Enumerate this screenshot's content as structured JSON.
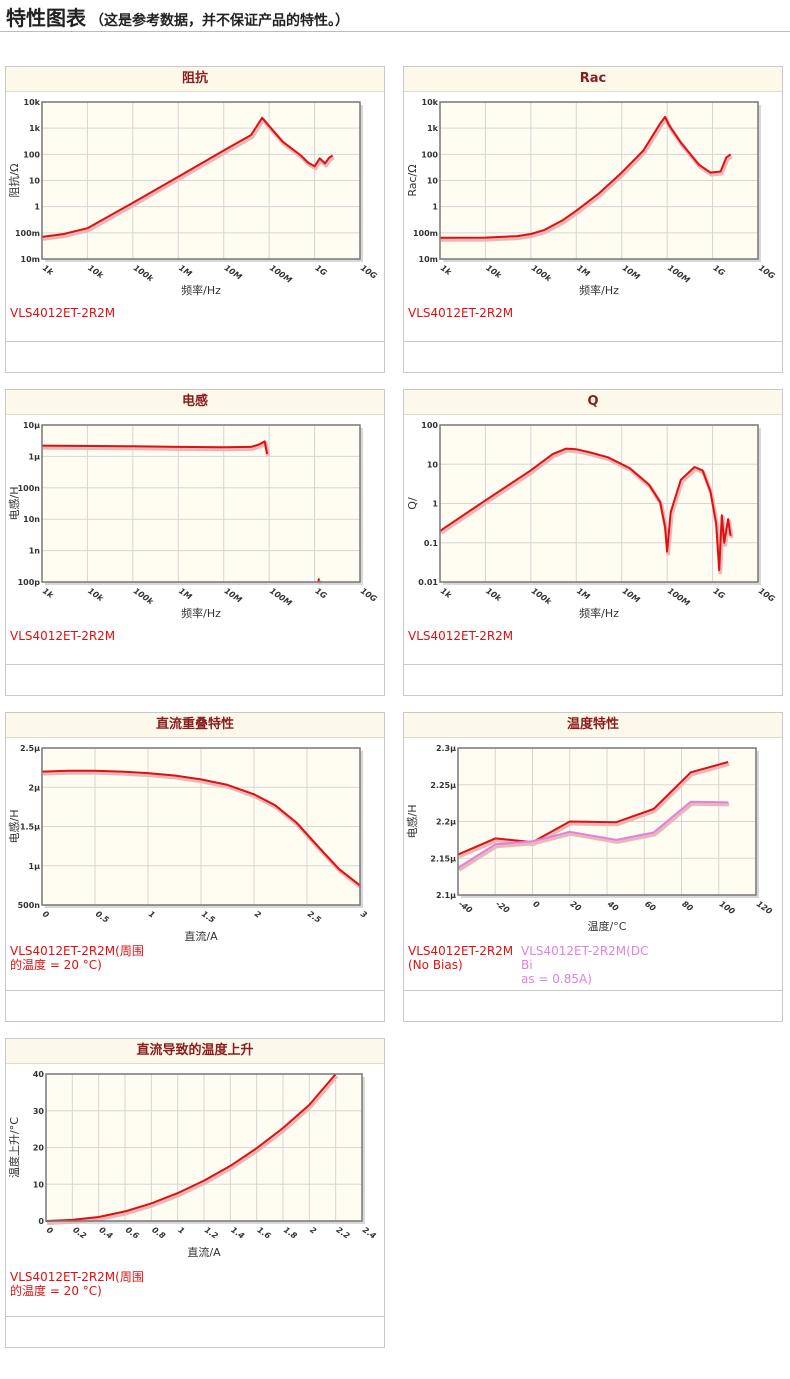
{
  "page": {
    "title": "特性图表",
    "subtitle": "（这是参考数据，并不保证产品的特性。）"
  },
  "charts": [
    {
      "id": "impedance",
      "title": "阻抗",
      "type": "line",
      "xscale": "log",
      "yscale": "log",
      "xlim": [
        1000,
        10000000000
      ],
      "ylim": [
        0.01,
        10000
      ],
      "xticks": [
        [
          1000,
          "1k"
        ],
        [
          10000,
          "10k"
        ],
        [
          100000,
          "100k"
        ],
        [
          1000000,
          "1M"
        ],
        [
          10000000,
          "10M"
        ],
        [
          100000000,
          "100M"
        ],
        [
          1000000000,
          "1G"
        ],
        [
          10000000000,
          "10G"
        ]
      ],
      "yticks": [
        [
          0.01,
          "10m"
        ],
        [
          0.1,
          "100m"
        ],
        [
          1,
          "1"
        ],
        [
          10,
          "10"
        ],
        [
          100,
          "100"
        ],
        [
          1000,
          "1k"
        ],
        [
          10000,
          "10k"
        ]
      ],
      "xlabel": "频率/Hz",
      "ylabel": "阻抗/Ω",
      "series": [
        {
          "name": "VLS4012ET-2R2M",
          "color": "#e01010",
          "x": [
            1000,
            3000,
            10000,
            100000,
            1000000,
            10000000,
            40000000,
            70000000,
            100000000,
            200000000,
            500000000,
            700000000,
            1000000000,
            1300000000,
            1700000000,
            2100000000,
            2500000000
          ],
          "y": [
            0.07,
            0.09,
            0.15,
            1.4,
            14,
            140,
            550,
            2500,
            1200,
            300,
            90,
            50,
            35,
            70,
            45,
            75,
            90
          ]
        }
      ]
    },
    {
      "id": "rac",
      "title": "Rac",
      "type": "line",
      "xscale": "log",
      "yscale": "log",
      "xlim": [
        1000,
        10000000000
      ],
      "ylim": [
        0.01,
        10000
      ],
      "xticks": [
        [
          1000,
          "1k"
        ],
        [
          10000,
          "10k"
        ],
        [
          100000,
          "100k"
        ],
        [
          1000000,
          "1M"
        ],
        [
          10000000,
          "10M"
        ],
        [
          100000000,
          "100M"
        ],
        [
          1000000000,
          "1G"
        ],
        [
          10000000000,
          "10G"
        ]
      ],
      "yticks": [
        [
          0.01,
          "10m"
        ],
        [
          0.1,
          "100m"
        ],
        [
          1,
          "1"
        ],
        [
          10,
          "10"
        ],
        [
          100,
          "100"
        ],
        [
          1000,
          "1k"
        ],
        [
          10000,
          "10k"
        ]
      ],
      "xlabel": "频率/Hz",
      "ylabel": "Rac/Ω",
      "series": [
        {
          "name": "VLS4012ET-2R2M",
          "color": "#e01010",
          "x": [
            1000,
            10000,
            50000,
            100000,
            200000,
            500000,
            1000000,
            3000000,
            10000000,
            30000000,
            70000000,
            90000000,
            110000000,
            200000000,
            500000000,
            900000000,
            1500000000,
            2000000000,
            2500000000
          ],
          "y": [
            0.065,
            0.066,
            0.075,
            0.09,
            0.13,
            0.3,
            0.7,
            3,
            20,
            140,
            1500,
            2700,
            1300,
            280,
            40,
            20,
            22,
            75,
            100
          ]
        }
      ]
    },
    {
      "id": "inductance",
      "title": "电感",
      "type": "line",
      "xscale": "log",
      "yscale": "log",
      "xlim": [
        1000,
        10000000000
      ],
      "ylim": [
        1e-10,
        1e-05
      ],
      "xticks": [
        [
          1000,
          "1k"
        ],
        [
          10000,
          "10k"
        ],
        [
          100000,
          "100k"
        ],
        [
          1000000,
          "1M"
        ],
        [
          10000000,
          "10M"
        ],
        [
          100000000,
          "100M"
        ],
        [
          1000000000,
          "1G"
        ],
        [
          10000000000,
          "10G"
        ]
      ],
      "yticks": [
        [
          1e-10,
          "100p"
        ],
        [
          1e-09,
          "1n"
        ],
        [
          1e-08,
          "10n"
        ],
        [
          1e-07,
          "100n"
        ],
        [
          1e-06,
          "1μ"
        ],
        [
          1e-05,
          "10μ"
        ]
      ],
      "xlabel": "频率/Hz",
      "ylabel": "电感/H",
      "series": [
        {
          "name": "VLS4012ET-2R2M",
          "color": "#e01010",
          "x": [
            1000,
            100000,
            1000000,
            10000000,
            40000000,
            60000000,
            80000000,
            90000000
          ],
          "y": [
            2.2e-06,
            2.1e-06,
            2e-06,
            1.95e-06,
            2e-06,
            2.4e-06,
            3e-06,
            1.2e-06
          ]
        },
        {
          "name": "VLS4012ET-2R2M (hf)",
          "color": "#e01010",
          "x": [
            1200000000,
            1260000000
          ],
          "y": [
            1e-10,
            1.3e-10
          ]
        }
      ]
    },
    {
      "id": "q",
      "title": "Q",
      "type": "line",
      "xscale": "log",
      "yscale": "log",
      "xlim": [
        1000,
        10000000000
      ],
      "ylim": [
        0.01,
        100
      ],
      "xticks": [
        [
          1000,
          "1k"
        ],
        [
          10000,
          "10k"
        ],
        [
          100000,
          "100k"
        ],
        [
          1000000,
          "1M"
        ],
        [
          10000000,
          "10M"
        ],
        [
          100000000,
          "100M"
        ],
        [
          1000000000,
          "1G"
        ],
        [
          10000000000,
          "10G"
        ]
      ],
      "yticks": [
        [
          0.01,
          "0.01"
        ],
        [
          0.1,
          "0.1"
        ],
        [
          1,
          "1"
        ],
        [
          10,
          "10"
        ],
        [
          100,
          "100"
        ]
      ],
      "xlabel": "频率/Hz",
      "ylabel": "Q/",
      "series": [
        {
          "name": "VLS4012ET-2R2M",
          "color": "#e01010",
          "x": [
            1000,
            10000,
            100000,
            300000,
            600000,
            1000000,
            2000000,
            5000000,
            15000000,
            40000000,
            70000000,
            90000000,
            100000000,
            120000000,
            200000000,
            400000000,
            600000000,
            900000000,
            1200000000,
            1400000000,
            1600000000,
            1800000000,
            2200000000,
            2500000000
          ],
          "y": [
            0.2,
            1.2,
            7,
            18,
            25,
            24,
            20,
            15,
            8,
            3,
            1.1,
            0.25,
            0.06,
            0.6,
            4,
            8.5,
            7,
            2,
            0.3,
            0.02,
            0.5,
            0.1,
            0.4,
            0.15
          ]
        }
      ]
    },
    {
      "id": "dc-bias",
      "title": "直流重叠特性",
      "type": "line",
      "xscale": "linear",
      "yscale": "linear",
      "xlim": [
        0,
        3
      ],
      "ylim": [
        5e-07,
        2.5e-06
      ],
      "xticks": [
        [
          0,
          "0"
        ],
        [
          0.5,
          "0.5"
        ],
        [
          1,
          "1"
        ],
        [
          1.5,
          "1.5"
        ],
        [
          2,
          "2"
        ],
        [
          2.5,
          "2.5"
        ],
        [
          3,
          "3"
        ]
      ],
      "yticks": [
        [
          5e-07,
          "500n"
        ],
        [
          1e-06,
          "1μ"
        ],
        [
          1.5e-06,
          "1.5μ"
        ],
        [
          2e-06,
          "2μ"
        ],
        [
          2.5e-06,
          "2.5μ"
        ]
      ],
      "xlabel": "直流/A",
      "ylabel": "电感/H",
      "series": [
        {
          "name": "VLS4012ET-2R2M(周围的温度 = 20 °C)",
          "color": "#e01010",
          "x": [
            0,
            0.25,
            0.5,
            0.75,
            1,
            1.25,
            1.5,
            1.75,
            2,
            2.2,
            2.4,
            2.6,
            2.8,
            3
          ],
          "y": [
            2.2e-06,
            2.21e-06,
            2.21e-06,
            2.2e-06,
            2.18e-06,
            2.15e-06,
            2.1e-06,
            2.03e-06,
            1.91e-06,
            1.77e-06,
            1.55e-06,
            1.25e-06,
            9.6e-07,
            7.5e-07
          ]
        }
      ]
    },
    {
      "id": "temperature",
      "title": "温度特性",
      "type": "line",
      "xscale": "linear",
      "yscale": "linear",
      "xlim": [
        -40,
        120
      ],
      "ylim": [
        2.1e-06,
        2.3e-06
      ],
      "xticks": [
        [
          -40,
          "-40"
        ],
        [
          -20,
          "-20"
        ],
        [
          0,
          "0"
        ],
        [
          20,
          "20"
        ],
        [
          40,
          "40"
        ],
        [
          60,
          "60"
        ],
        [
          80,
          "80"
        ],
        [
          100,
          "100"
        ],
        [
          120,
          "120"
        ]
      ],
      "yticks": [
        [
          2.1e-06,
          "2.1μ"
        ],
        [
          2.15e-06,
          "2.15μ"
        ],
        [
          2.2e-06,
          "2.2μ"
        ],
        [
          2.25e-06,
          "2.25μ"
        ],
        [
          2.3e-06,
          "2.3μ"
        ]
      ],
      "xlabel": "温度/°C",
      "ylabel": "电感/H",
      "series": [
        {
          "name": "VLS4012ET-2R2M (No Bias)",
          "color": "#e01010",
          "x": [
            -40,
            -20,
            0,
            20,
            45,
            65,
            85,
            105
          ],
          "y": [
            2.155e-06,
            2.177e-06,
            2.172e-06,
            2.2e-06,
            2.199e-06,
            2.217e-06,
            2.267e-06,
            2.281e-06
          ]
        },
        {
          "name": "VLS4012ET-2R2M(DC Bias = 0.85A)",
          "color": "#e080e0",
          "x": [
            -40,
            -20,
            0,
            20,
            45,
            65,
            85,
            105
          ],
          "y": [
            2.137e-06,
            2.169e-06,
            2.173e-06,
            2.186e-06,
            2.175e-06,
            2.185e-06,
            2.227e-06,
            2.226e-06
          ]
        }
      ]
    },
    {
      "id": "temp-rise",
      "title": "直流导致的温度上升",
      "type": "line",
      "xscale": "linear",
      "yscale": "linear",
      "xlim": [
        0,
        2.4
      ],
      "ylim": [
        0,
        40
      ],
      "xticks": [
        [
          0,
          "0"
        ],
        [
          0.2,
          "0.2"
        ],
        [
          0.4,
          "0.4"
        ],
        [
          0.6,
          "0.6"
        ],
        [
          0.8,
          "0.8"
        ],
        [
          1,
          "1"
        ],
        [
          1.2,
          "1.2"
        ],
        [
          1.4,
          "1.4"
        ],
        [
          1.6,
          "1.6"
        ],
        [
          1.8,
          "1.8"
        ],
        [
          2,
          "2"
        ],
        [
          2.2,
          "2.2"
        ],
        [
          2.4,
          "2.4"
        ]
      ],
      "yticks": [
        [
          0,
          "0"
        ],
        [
          10,
          "10"
        ],
        [
          20,
          "20"
        ],
        [
          30,
          "30"
        ],
        [
          40,
          "40"
        ]
      ],
      "xlabel": "直流/A",
      "ylabel": "温度上升/°C",
      "series": [
        {
          "name": "VLS4012ET-2R2M(周围的温度 = 20 °C)",
          "color": "#e01010",
          "x": [
            0,
            0.2,
            0.4,
            0.6,
            0.8,
            1,
            1.2,
            1.4,
            1.6,
            1.8,
            2,
            2.2
          ],
          "y": [
            0,
            0.3,
            1.1,
            2.6,
            4.8,
            7.6,
            11,
            15,
            19.8,
            25.3,
            31.6,
            40
          ]
        }
      ]
    }
  ],
  "legends": {
    "impedance": [
      "VLS4012ET-2R2M"
    ],
    "rac": [
      "VLS4012ET-2R2M"
    ],
    "inductance": [
      "VLS4012ET-2R2M"
    ],
    "q": [
      "VLS4012ET-2R2M"
    ],
    "dc-bias": [
      "VLS4012ET-2R2M(周围\n的温度 = 20 °C)"
    ],
    "temperature": [
      "VLS4012ET-2R2M\n(No Bias)",
      "VLS4012ET-2R2M(DC Bi\nas = 0.85A)"
    ],
    "temp-rise": [
      "VLS4012ET-2R2M(周围\n的温度 = 20 °C)"
    ]
  },
  "legend_colors": {
    "primary": "#e01010",
    "secondary": "#e080e0"
  },
  "colors": {
    "plot_bg": "#fffcf2",
    "grid": "#d6d6d6",
    "frame": "#777777",
    "header_bg": "#fdf9ea",
    "header_text": "#8a1c1c"
  }
}
